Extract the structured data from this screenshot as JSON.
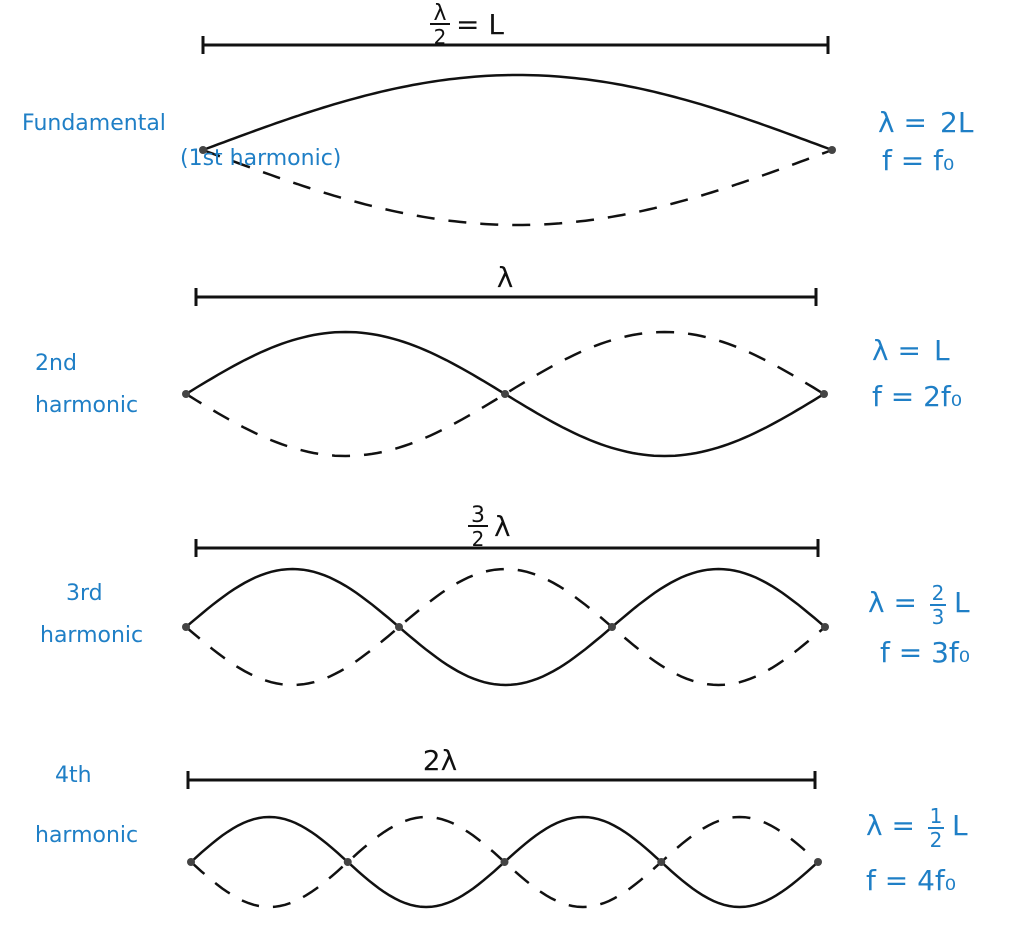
{
  "colors": {
    "ink": "#111111",
    "label": "#1f7fc6"
  },
  "harmonics": [
    {
      "name_lines": [
        "Fundamental",
        "(1st harmonic)"
      ],
      "length_label": {
        "num": "λ",
        "den": "2",
        "rest": "= L"
      },
      "wavelength": {
        "lhs": "λ =",
        "num": "",
        "den": "",
        "rhs": "2L"
      },
      "frequency": "f = f₀",
      "n": 1
    },
    {
      "name_lines": [
        "2nd",
        "harmonic"
      ],
      "length_label": {
        "num": "",
        "den": "",
        "rest": "λ"
      },
      "wavelength": {
        "lhs": "λ =",
        "num": "",
        "den": "",
        "rhs": "L"
      },
      "frequency": "f = 2f₀",
      "n": 2
    },
    {
      "name_lines": [
        "3rd",
        "harmonic"
      ],
      "length_label": {
        "num": "3",
        "den": "2",
        "rest": "λ"
      },
      "wavelength": {
        "lhs": "λ =",
        "num": "2",
        "den": "3",
        "rhs": "L"
      },
      "frequency": "f = 3f₀",
      "n": 3
    },
    {
      "name_lines": [
        "4th",
        "harmonic"
      ],
      "length_label": {
        "num": "",
        "den": "",
        "rest": "2λ"
      },
      "wavelength": {
        "lhs": "λ =",
        "num": "1",
        "den": "2",
        "rhs": "L"
      },
      "frequency": "f = 4f₀",
      "n": 4
    }
  ]
}
